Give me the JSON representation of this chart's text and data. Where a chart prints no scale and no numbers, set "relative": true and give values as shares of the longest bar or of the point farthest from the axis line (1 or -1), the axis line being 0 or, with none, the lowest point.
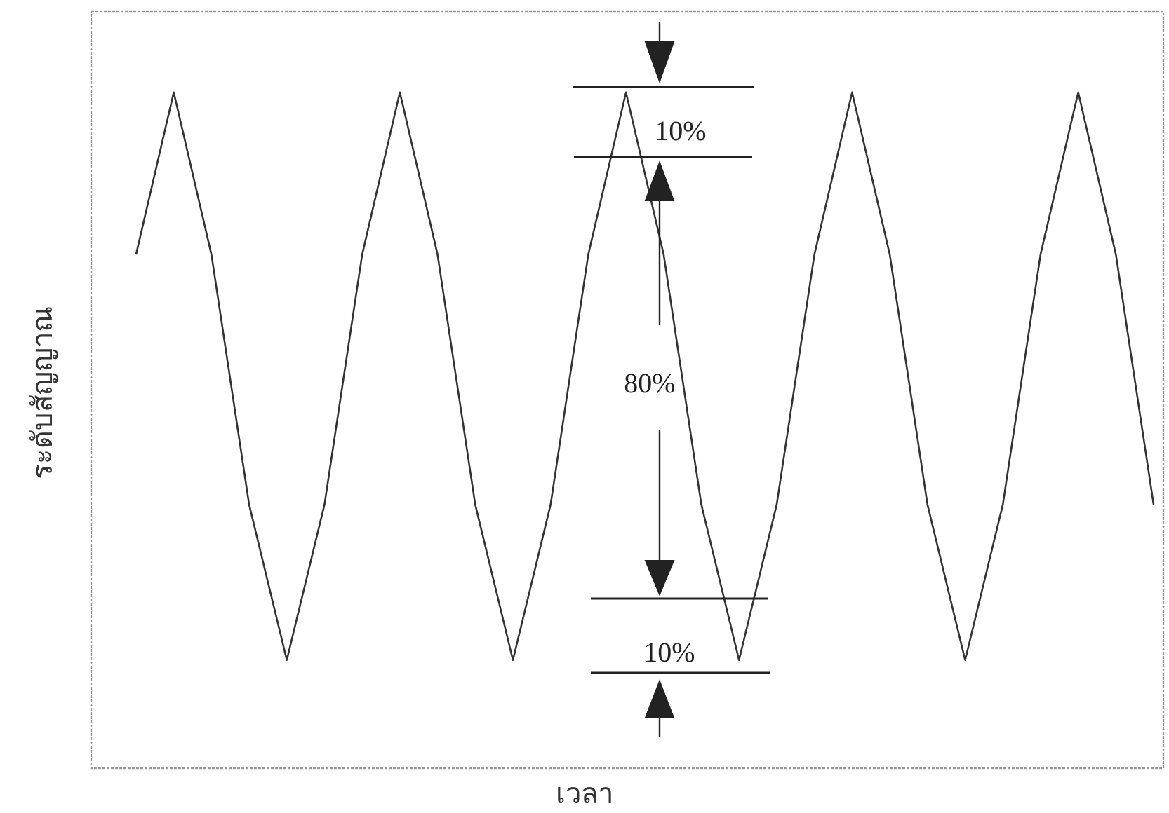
{
  "chart_data": {
    "type": "line",
    "relative": true,
    "xlabel": "เวลา",
    "ylabel": "ระดับสัญญาณ",
    "annotations": [
      "10%",
      "80%",
      "10%"
    ],
    "categories": [
      null,
      null,
      null,
      null,
      null,
      null,
      null,
      null,
      null,
      null,
      null,
      null,
      null,
      null,
      null,
      null,
      null,
      null,
      null,
      null,
      null,
      null,
      null,
      null,
      null,
      null,
      null,
      null
    ],
    "series": [
      {
        "color": "#333333",
        "values": [
          0.76,
          1,
          0.76,
          0.39,
          0.16,
          0.39,
          0.76,
          1,
          0.76,
          0.39,
          0.16,
          0.39,
          0.76,
          1,
          0.76,
          0.39,
          0.16,
          0.39,
          0.76,
          1,
          0.76,
          0.39,
          0.16,
          0.39,
          0.76,
          1,
          0.76,
          0.39
        ]
      }
    ]
  }
}
